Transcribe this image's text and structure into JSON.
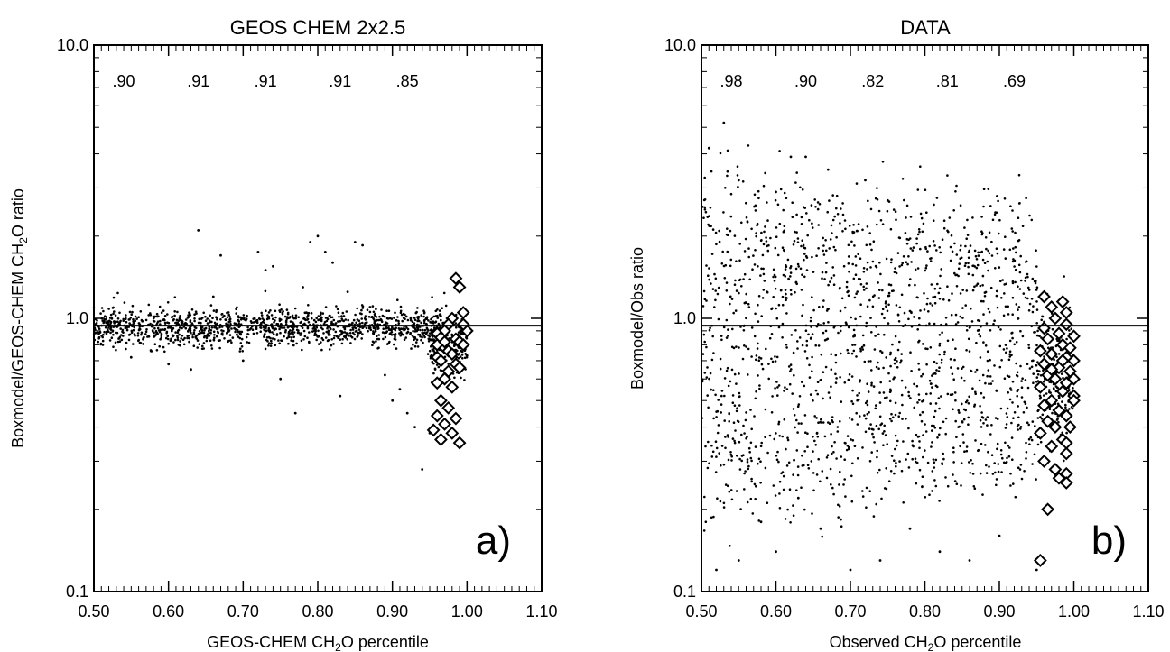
{
  "chart_data": [
    {
      "type": "scatter",
      "title": "GEOS CHEM 2x2.5",
      "xlabel": "GEOS-CHEM CH2O percentile",
      "ylabel": "Boxmodel/GEOS-CHEM CH2O ratio",
      "xlim": [
        0.5,
        1.1
      ],
      "ylim": [
        0.1,
        10.0
      ],
      "yscale": "log",
      "x_ticks": [
        "0.50",
        "0.60",
        "0.70",
        "0.80",
        "0.90",
        "1.00",
        "1.10"
      ],
      "y_ticks": [
        "0.1",
        "1.0",
        "10.0"
      ],
      "reference_line_y": 0.94,
      "correlation_labels": [
        {
          "x": 0.54,
          "text": ".90"
        },
        {
          "x": 0.64,
          "text": ".91"
        },
        {
          "x": 0.73,
          "text": ".91"
        },
        {
          "x": 0.83,
          "text": ".91"
        },
        {
          "x": 0.92,
          "text": ".85"
        }
      ],
      "panel_label": "a)",
      "cloud": {
        "x_range": [
          0.5,
          0.965
        ],
        "center": 0.93,
        "spread": 0.035,
        "count": 1300,
        "seed": 11
      },
      "extra_points": [
        [
          0.64,
          2.1
        ],
        [
          0.67,
          1.7
        ],
        [
          0.72,
          1.75
        ],
        [
          0.73,
          1.5
        ],
        [
          0.74,
          1.55
        ],
        [
          0.79,
          1.9
        ],
        [
          0.8,
          2.0
        ],
        [
          0.81,
          1.75
        ],
        [
          0.82,
          1.6
        ],
        [
          0.84,
          1.25
        ],
        [
          0.85,
          1.9
        ],
        [
          0.86,
          1.85
        ],
        [
          0.77,
          0.45
        ],
        [
          0.83,
          0.52
        ],
        [
          0.9,
          0.5
        ],
        [
          0.94,
          0.28
        ],
        [
          0.6,
          0.68
        ],
        [
          0.63,
          0.65
        ],
        [
          0.7,
          0.7
        ],
        [
          0.75,
          0.6
        ],
        [
          0.89,
          0.62
        ],
        [
          0.91,
          0.55
        ],
        [
          0.92,
          0.45
        ],
        [
          0.93,
          0.4
        ],
        [
          0.95,
          0.38
        ],
        [
          0.55,
          0.72
        ],
        [
          0.78,
          1.3
        ],
        [
          0.66,
          1.2
        ],
        [
          0.87,
          1.1
        ]
      ],
      "diamonds": [
        [
          0.985,
          1.4
        ],
        [
          0.99,
          1.3
        ],
        [
          0.995,
          1.05
        ],
        [
          0.98,
          1.0
        ],
        [
          0.975,
          0.95
        ],
        [
          0.97,
          0.9
        ],
        [
          0.96,
          0.88
        ],
        [
          0.965,
          0.85
        ],
        [
          0.985,
          0.84
        ],
        [
          0.99,
          0.82
        ],
        [
          0.995,
          0.8
        ],
        [
          0.97,
          0.78
        ],
        [
          0.975,
          0.76
        ],
        [
          0.98,
          0.74
        ],
        [
          0.96,
          0.72
        ],
        [
          0.965,
          0.7
        ],
        [
          0.985,
          0.68
        ],
        [
          0.99,
          0.66
        ],
        [
          0.975,
          0.64
        ],
        [
          0.97,
          0.6
        ],
        [
          0.96,
          0.58
        ],
        [
          0.98,
          0.56
        ],
        [
          0.965,
          0.5
        ],
        [
          0.975,
          0.47
        ],
        [
          0.96,
          0.44
        ],
        [
          0.985,
          0.43
        ],
        [
          0.97,
          0.41
        ],
        [
          0.955,
          0.39
        ],
        [
          0.98,
          0.38
        ],
        [
          0.965,
          0.36
        ],
        [
          0.99,
          0.35
        ],
        [
          1.0,
          0.9
        ],
        [
          0.995,
          0.95
        ],
        [
          0.96,
          0.8
        ],
        [
          0.97,
          0.82
        ]
      ]
    },
    {
      "type": "scatter",
      "title": "DATA",
      "xlabel": "Observed CH2O percentile",
      "ylabel": "Boxmodel/Obs ratio",
      "xlim": [
        0.5,
        1.1
      ],
      "ylim": [
        0.1,
        10.0
      ],
      "yscale": "log",
      "x_ticks": [
        "0.50",
        "0.60",
        "0.70",
        "0.80",
        "0.90",
        "1.00",
        "1.10"
      ],
      "y_ticks": [
        "0.1",
        "1.0",
        "10.0"
      ],
      "reference_line_y": 0.94,
      "correlation_labels": [
        {
          "x": 0.54,
          "text": ".98"
        },
        {
          "x": 0.64,
          "text": ".90"
        },
        {
          "x": 0.73,
          "text": ".82"
        },
        {
          "x": 0.83,
          "text": ".81"
        },
        {
          "x": 0.92,
          "text": ".69"
        }
      ],
      "panel_label": "b)",
      "cloud": {
        "x_range": [
          0.5,
          0.955
        ],
        "center": 0.8,
        "spread": 0.42,
        "count": 1700,
        "seed": 29
      },
      "extra_points": [
        [
          0.53,
          5.2
        ],
        [
          0.51,
          4.2
        ],
        [
          0.62,
          3.9
        ],
        [
          0.64,
          3.9
        ],
        [
          0.67,
          3.5
        ],
        [
          0.72,
          3.2
        ],
        [
          0.55,
          3.2
        ],
        [
          0.6,
          2.9
        ],
        [
          0.75,
          2.7
        ],
        [
          0.52,
          0.12
        ],
        [
          0.55,
          0.13
        ],
        [
          0.6,
          0.14
        ],
        [
          0.7,
          0.12
        ],
        [
          0.58,
          0.18
        ],
        [
          0.66,
          0.17
        ],
        [
          0.74,
          0.13
        ],
        [
          0.86,
          0.13
        ],
        [
          0.82,
          0.14
        ],
        [
          0.9,
          0.16
        ],
        [
          0.95,
          0.12
        ],
        [
          0.78,
          0.17
        ],
        [
          0.63,
          0.22
        ]
      ],
      "diamonds": [
        [
          0.97,
          1.1
        ],
        [
          0.985,
          1.15
        ],
        [
          0.99,
          1.05
        ],
        [
          0.96,
          1.2
        ],
        [
          0.975,
          1.0
        ],
        [
          0.99,
          0.95
        ],
        [
          0.96,
          0.92
        ],
        [
          0.98,
          0.88
        ],
        [
          1.0,
          0.86
        ],
        [
          0.965,
          0.84
        ],
        [
          0.985,
          0.8
        ],
        [
          0.995,
          0.78
        ],
        [
          0.955,
          0.76
        ],
        [
          0.97,
          0.74
        ],
        [
          0.99,
          0.72
        ],
        [
          1.0,
          0.7
        ],
        [
          0.96,
          0.68
        ],
        [
          0.98,
          0.66
        ],
        [
          0.995,
          0.64
        ],
        [
          0.965,
          0.62
        ],
        [
          0.975,
          0.6
        ],
        [
          0.99,
          0.58
        ],
        [
          0.955,
          0.56
        ],
        [
          0.985,
          0.54
        ],
        [
          1.0,
          0.52
        ],
        [
          0.97,
          0.5
        ],
        [
          0.96,
          0.48
        ],
        [
          0.98,
          0.46
        ],
        [
          0.99,
          0.44
        ],
        [
          0.965,
          0.42
        ],
        [
          0.975,
          0.4
        ],
        [
          0.955,
          0.38
        ],
        [
          0.985,
          0.36
        ],
        [
          0.97,
          0.34
        ],
        [
          0.99,
          0.32
        ],
        [
          0.96,
          0.3
        ],
        [
          0.975,
          0.28
        ],
        [
          0.99,
          0.27
        ],
        [
          0.98,
          0.26
        ],
        [
          0.99,
          0.25
        ],
        [
          0.965,
          0.2
        ],
        [
          0.955,
          0.13
        ],
        [
          1.0,
          0.6
        ],
        [
          1.0,
          0.5
        ],
        [
          0.995,
          0.4
        ],
        [
          0.99,
          0.35
        ],
        [
          0.97,
          0.65
        ],
        [
          0.985,
          0.7
        ]
      ]
    }
  ]
}
